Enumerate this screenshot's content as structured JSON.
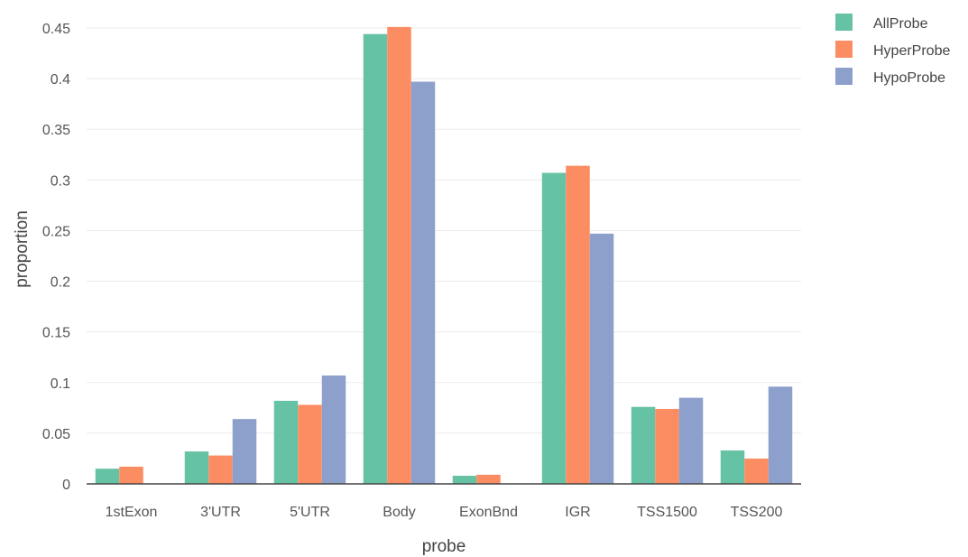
{
  "chart_data": {
    "type": "bar",
    "title": "",
    "xlabel": "probe",
    "ylabel": "proportion",
    "categories": [
      "1stExon",
      "3'UTR",
      "5'UTR",
      "Body",
      "ExonBnd",
      "IGR",
      "TSS1500",
      "TSS200"
    ],
    "series": [
      {
        "name": "AllProbe",
        "color": "#66c2a5",
        "values": [
          0.015,
          0.032,
          0.082,
          0.444,
          0.008,
          0.307,
          0.076,
          0.033
        ]
      },
      {
        "name": "HyperProbe",
        "color": "#fc8d62",
        "values": [
          0.017,
          0.028,
          0.078,
          0.451,
          0.009,
          0.314,
          0.074,
          0.025
        ]
      },
      {
        "name": "HypoProbe",
        "color": "#8da0cb",
        "values": [
          0.0,
          0.064,
          0.107,
          0.397,
          0.0,
          0.247,
          0.085,
          0.096
        ]
      }
    ],
    "ylim": [
      0,
      0.45
    ],
    "yticks": [
      0,
      0.05,
      0.1,
      0.15,
      0.2,
      0.25,
      0.3,
      0.35,
      0.4,
      0.45
    ],
    "ytick_labels": [
      "0",
      "0.05",
      "0.1",
      "0.15",
      "0.2",
      "0.25",
      "0.3",
      "0.35",
      "0.4",
      "0.45"
    ],
    "grid": true,
    "legend_position": "top-right"
  }
}
